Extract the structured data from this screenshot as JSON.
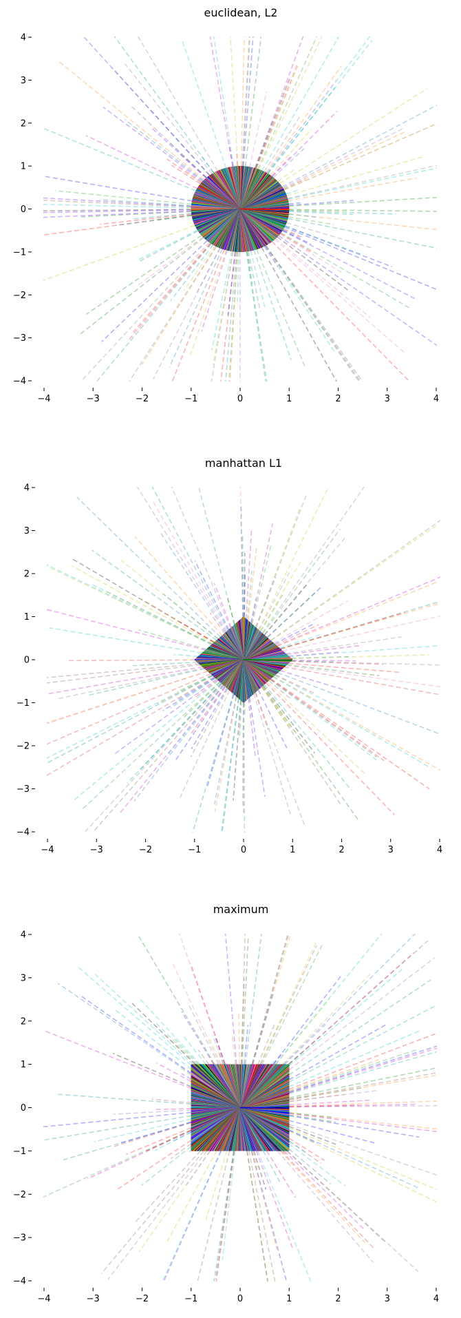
{
  "figure": {
    "panel_count": 3
  },
  "chart_data": [
    {
      "type": "line",
      "title": "euclidean, L2",
      "norm": "L2",
      "xlabel": "",
      "ylabel": "",
      "xlim": [
        -4,
        4
      ],
      "ylim": [
        -4,
        4
      ],
      "xticks": [
        -4,
        -3,
        -2,
        -1,
        0,
        1,
        2,
        3,
        4
      ],
      "yticks": [
        -4,
        -3,
        -2,
        -1,
        0,
        1,
        2,
        3,
        4
      ],
      "grid": false,
      "ray_count": 150,
      "outer_radius_range": [
        1.2,
        5.6
      ],
      "unit_shape": "circle",
      "inner_segment_style": "solid",
      "outer_segment_style": "dashed",
      "outer_alpha": 0.3
    },
    {
      "type": "line",
      "title": "manhattan L1",
      "norm": "L1",
      "xlabel": "",
      "ylabel": "",
      "xlim": [
        -4,
        4
      ],
      "ylim": [
        -4,
        4
      ],
      "xticks": [
        -4,
        -3,
        -2,
        -1,
        0,
        1,
        2,
        3,
        4
      ],
      "yticks": [
        -4,
        -3,
        -2,
        -1,
        0,
        1,
        2,
        3,
        4
      ],
      "grid": false,
      "ray_count": 150,
      "outer_radius_range": [
        1.2,
        5.6
      ],
      "unit_shape": "diamond",
      "inner_segment_style": "solid",
      "outer_segment_style": "dashed",
      "outer_alpha": 0.3
    },
    {
      "type": "line",
      "title": "maximum",
      "norm": "Linf",
      "xlabel": "",
      "ylabel": "",
      "xlim": [
        -4,
        4
      ],
      "ylim": [
        -4,
        4
      ],
      "xticks": [
        -4,
        -3,
        -2,
        -1,
        0,
        1,
        2,
        3,
        4
      ],
      "yticks": [
        -4,
        -3,
        -2,
        -1,
        0,
        1,
        2,
        3,
        4
      ],
      "grid": false,
      "ray_count": 150,
      "outer_radius_range": [
        1.2,
        5.6
      ],
      "unit_shape": "square",
      "inner_segment_style": "solid",
      "outer_segment_style": "dashed",
      "outer_alpha": 0.3
    }
  ],
  "palette": [
    "#0000ff",
    "#008000",
    "#ff0000",
    "#00bfbf",
    "#bf00bf",
    "#bfbf00",
    "#000000",
    "#1f77b4",
    "#ff7f0e",
    "#2ca02c",
    "#d62728",
    "#9467bd",
    "#8c564b",
    "#e377c2",
    "#7f7f7f",
    "#bcbd22",
    "#17becf",
    "#00a0a0",
    "#6a00ff",
    "#008b8b"
  ]
}
